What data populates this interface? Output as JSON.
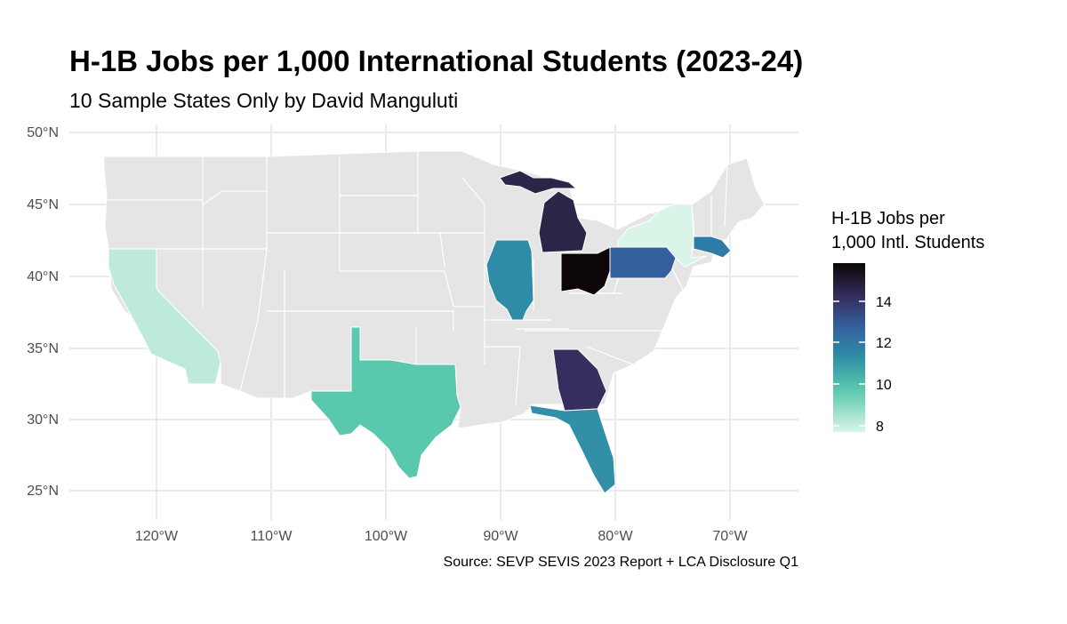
{
  "title": "H-1B Jobs per 1,000 International Students (2023-24)",
  "subtitle": "10 Sample States Only by David Manguluti",
  "caption": "Source: SEVP SEVIS 2023 Report + LCA Disclosure Q1",
  "chart_data": {
    "type": "choropleth",
    "region": "Contiguous United States",
    "lat_ticks": [
      "50°N",
      "45°N",
      "40°N",
      "35°N",
      "30°N",
      "25°N"
    ],
    "lon_ticks": [
      "120°W",
      "110°W",
      "100°W",
      "90°W",
      "80°W",
      "70°W"
    ],
    "legend": {
      "title_line1": "H-1B Jobs per",
      "title_line2": "1,000 Intl. Students",
      "ticks": [
        "14",
        "12",
        "10",
        "8"
      ],
      "placement": "right"
    },
    "grid": true,
    "states": [
      {
        "name": "California",
        "value": 7.9,
        "color": "#bdeadb"
      },
      {
        "name": "Texas",
        "value": 9.6,
        "color": "#5ac8ad"
      },
      {
        "name": "Illinois",
        "value": 11.2,
        "color": "#2f8ca8"
      },
      {
        "name": "Michigan",
        "value": 15.0,
        "color": "#2c2547"
      },
      {
        "name": "Ohio",
        "value": 16.0,
        "color": "#0c0608"
      },
      {
        "name": "Pennsylvania",
        "value": 12.6,
        "color": "#34609e"
      },
      {
        "name": "New York",
        "value": 7.8,
        "color": "#d8f5e8"
      },
      {
        "name": "Massachusetts",
        "value": 11.8,
        "color": "#2d7ba6"
      },
      {
        "name": "Georgia",
        "value": 14.2,
        "color": "#352e5e"
      },
      {
        "name": "Florida",
        "value": 11.1,
        "color": "#3190a8"
      }
    ],
    "no_data_color": "#e5e5e5",
    "colors": {
      "grid": "#ebebeb",
      "border": "#ffffff"
    }
  }
}
